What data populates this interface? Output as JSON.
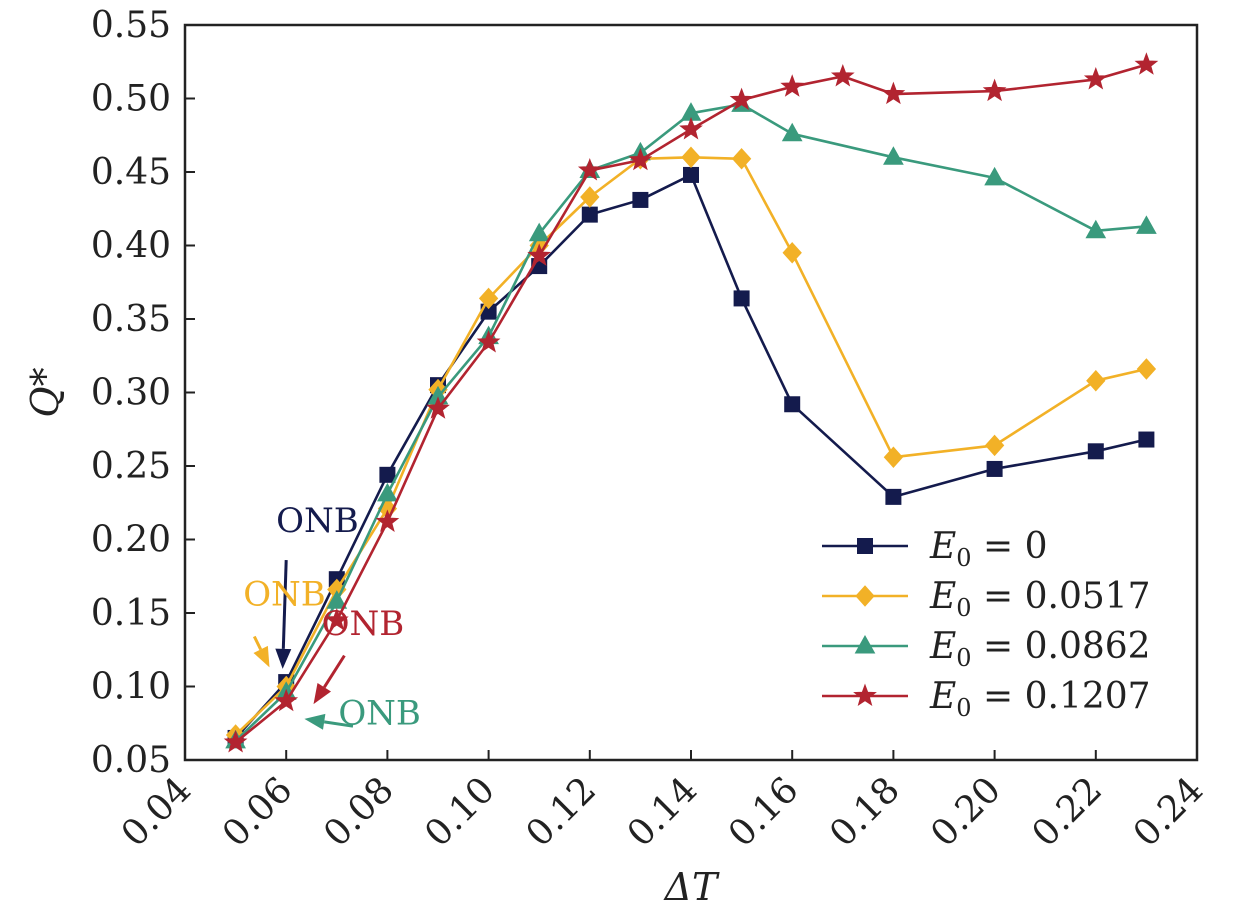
{
  "chart_data": {
    "type": "line",
    "xlabel": "ΔT",
    "ylabel": "Q*",
    "xlim": [
      0.04,
      0.24
    ],
    "ylim": [
      0.05,
      0.55
    ],
    "xticks": [
      "0.04",
      "0.06",
      "0.08",
      "0.10",
      "0.12",
      "0.14",
      "0.16",
      "0.18",
      "0.20",
      "0.22",
      "0.24"
    ],
    "yticks": [
      "0.05",
      "0.10",
      "0.15",
      "0.20",
      "0.25",
      "0.30",
      "0.35",
      "0.40",
      "0.45",
      "0.50",
      "0.55"
    ],
    "grid": false,
    "legend_position": "lower-right",
    "series": [
      {
        "name": "E0 = 0",
        "legend": {
          "base": "E",
          "sub": "0",
          "rest": " = 0"
        },
        "color": "#141b4d",
        "marker": "square",
        "x": [
          0.05,
          0.06,
          0.07,
          0.08,
          0.09,
          0.1,
          0.11,
          0.12,
          0.13,
          0.14,
          0.15,
          0.16,
          0.18,
          0.2,
          0.22,
          0.23
        ],
        "y": [
          0.065,
          0.103,
          0.173,
          0.244,
          0.305,
          0.355,
          0.386,
          0.421,
          0.431,
          0.448,
          0.364,
          0.292,
          0.229,
          0.248,
          0.26,
          0.268
        ]
      },
      {
        "name": "E0 = 0.0517",
        "legend": {
          "base": "E",
          "sub": "0",
          "rest": " = 0.0517"
        },
        "color": "#f2b127",
        "marker": "diamond",
        "x": [
          0.05,
          0.06,
          0.07,
          0.08,
          0.09,
          0.1,
          0.11,
          0.12,
          0.13,
          0.14,
          0.15,
          0.16,
          0.18,
          0.2,
          0.22,
          0.23
        ],
        "y": [
          0.067,
          0.1,
          0.166,
          0.221,
          0.302,
          0.364,
          0.4,
          0.433,
          0.459,
          0.46,
          0.459,
          0.395,
          0.256,
          0.264,
          0.308,
          0.316
        ]
      },
      {
        "name": "E0 = 0.0862",
        "legend": {
          "base": "E",
          "sub": "0",
          "rest": " = 0.0862"
        },
        "color": "#3a9a7d",
        "marker": "triangle",
        "x": [
          0.05,
          0.06,
          0.07,
          0.08,
          0.09,
          0.1,
          0.11,
          0.12,
          0.13,
          0.14,
          0.15,
          0.16,
          0.18,
          0.2,
          0.22,
          0.23
        ],
        "y": [
          0.063,
          0.096,
          0.158,
          0.231,
          0.297,
          0.338,
          0.408,
          0.451,
          0.463,
          0.49,
          0.496,
          0.476,
          0.46,
          0.446,
          0.41,
          0.413
        ]
      },
      {
        "name": "E0 = 0.1207",
        "legend": {
          "base": "E",
          "sub": "0",
          "rest": " = 0.1207"
        },
        "color": "#b22430",
        "marker": "star",
        "x": [
          0.05,
          0.06,
          0.07,
          0.08,
          0.09,
          0.1,
          0.11,
          0.12,
          0.13,
          0.14,
          0.15,
          0.16,
          0.17,
          0.18,
          0.2,
          0.22,
          0.23
        ],
        "y": [
          0.062,
          0.09,
          0.145,
          0.212,
          0.289,
          0.334,
          0.393,
          0.451,
          0.458,
          0.479,
          0.499,
          0.508,
          0.515,
          0.503,
          0.505,
          0.513,
          0.523
        ]
      }
    ],
    "annotations": [
      {
        "text": "ONB",
        "color": "#141b4d",
        "label_pos": [
          0.058,
          0.205
        ],
        "arrow_from": [
          0.06,
          0.186
        ],
        "arrow_to": [
          0.0593,
          0.112
        ]
      },
      {
        "text": "ONB",
        "color": "#f2b127",
        "label_pos": [
          0.0515,
          0.155
        ],
        "arrow_from": [
          0.0537,
          0.134
        ],
        "arrow_to": [
          0.0567,
          0.113
        ]
      },
      {
        "text": "ONB",
        "color": "#b22430",
        "label_pos": [
          0.067,
          0.135
        ],
        "arrow_from": [
          0.0715,
          0.121
        ],
        "arrow_to": [
          0.0654,
          0.088
        ]
      },
      {
        "text": "ONB",
        "color": "#3a9a7d",
        "label_pos": [
          0.0703,
          0.074
        ],
        "arrow_from": [
          0.0732,
          0.073
        ],
        "arrow_to": [
          0.0636,
          0.078
        ]
      }
    ]
  }
}
